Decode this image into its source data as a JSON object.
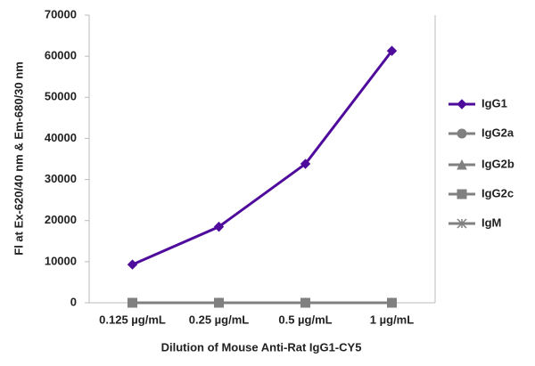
{
  "chart_data": {
    "type": "line",
    "y_label": "Fl at Ex-620/40 nm & Em-680/30 nm",
    "x_label": "Dilution of Mouse Anti-Rat IgG1-CY5",
    "categories": [
      "0.125 µg/mL",
      "0.25 µg/mL",
      "0.5 µg/mL",
      "1 µg/mL"
    ],
    "series": [
      {
        "name": "IgG1",
        "color": "#4f0c9c",
        "marker": "diamond",
        "values": [
          9300,
          18500,
          33800,
          61300
        ]
      },
      {
        "name": "IgG2a",
        "color": "#808080",
        "marker": "circle",
        "values": [
          0,
          0,
          0,
          0
        ]
      },
      {
        "name": "IgG2b",
        "color": "#808080",
        "marker": "triangle",
        "values": [
          0,
          0,
          0,
          0
        ]
      },
      {
        "name": "IgG2c",
        "color": "#808080",
        "marker": "square",
        "values": [
          0,
          0,
          0,
          0
        ]
      },
      {
        "name": "IgM",
        "color": "#808080",
        "marker": "star",
        "values": [
          0,
          0,
          0,
          0
        ]
      }
    ],
    "ylim": [
      0,
      70000
    ],
    "yticks": [
      0,
      10000,
      20000,
      30000,
      40000,
      50000,
      60000,
      70000
    ],
    "grid": false,
    "legend": "right"
  }
}
